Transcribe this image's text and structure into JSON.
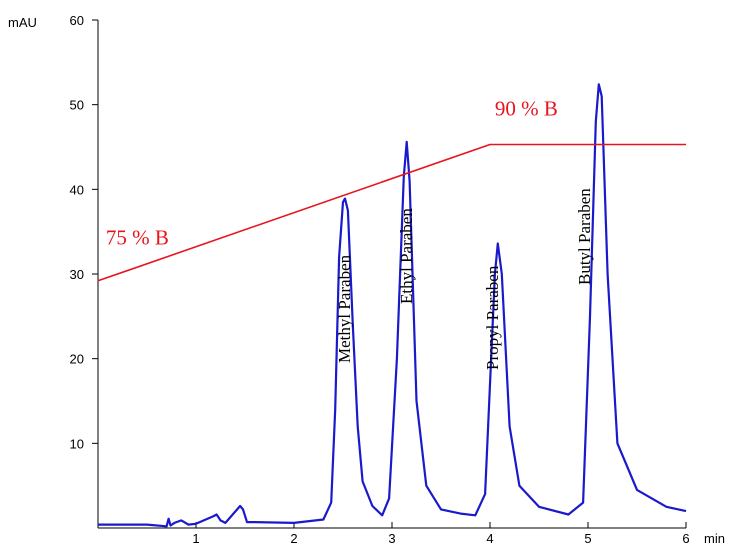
{
  "chart_data": {
    "type": "line",
    "title": "",
    "xlabel": "",
    "ylabel": "",
    "x_unit": "min",
    "y_unit": "mAU",
    "xlim": [
      0,
      6
    ],
    "ylim": [
      0,
      60
    ],
    "x_ticks": [
      1,
      2,
      3,
      4,
      5,
      6
    ],
    "y_ticks": [
      10,
      20,
      30,
      40,
      50,
      60
    ],
    "grid": false,
    "legend": "none",
    "colors": {
      "chromatogram": "#1a1acc",
      "gradient": "#e8141c",
      "text": "#000000"
    },
    "series": [
      {
        "color": "#1a1acc",
        "baseline": 0.4,
        "x": [
          0.0,
          0.5,
          0.7,
          0.72,
          0.74,
          0.78,
          0.85,
          0.88,
          0.92,
          1.0,
          1.18,
          1.21,
          1.25,
          1.3,
          1.45,
          1.48,
          1.52,
          1.6,
          2.0,
          2.3,
          2.38,
          2.42,
          2.46,
          2.5,
          2.52,
          2.55,
          2.6,
          2.65,
          2.7,
          2.8,
          2.9,
          2.97,
          3.05,
          3.12,
          3.15,
          3.18,
          3.25,
          3.35,
          3.5,
          3.7,
          3.85,
          3.95,
          4.0,
          4.05,
          4.08,
          4.12,
          4.2,
          4.3,
          4.5,
          4.8,
          4.95,
          5.02,
          5.08,
          5.11,
          5.14,
          5.2,
          5.3,
          5.5,
          5.8,
          6.0
        ],
        "y": [
          0.4,
          0.4,
          0.2,
          1.1,
          0.3,
          0.6,
          0.9,
          0.7,
          0.4,
          0.5,
          1.4,
          1.6,
          0.9,
          0.6,
          2.6,
          2.2,
          0.7,
          0.7,
          0.6,
          1.0,
          3.0,
          14.0,
          32.0,
          38.5,
          38.9,
          37.5,
          24.0,
          12.0,
          5.5,
          2.6,
          1.5,
          3.5,
          20.0,
          41.5,
          45.6,
          41.0,
          15.0,
          5.0,
          2.2,
          1.7,
          1.5,
          4.0,
          17.0,
          30.0,
          33.6,
          30.0,
          12.0,
          5.0,
          2.5,
          1.6,
          3.0,
          25.0,
          48.0,
          52.4,
          51.0,
          30.0,
          10.0,
          4.5,
          2.5,
          2.0
        ]
      },
      {
        "color": "#e8141c",
        "x": [
          0.0,
          4.0,
          6.0
        ],
        "y": [
          29.2,
          45.3,
          45.3
        ]
      }
    ],
    "peaks": [
      {
        "label": "Methyl Paraben",
        "retention_min": 2.52,
        "height": 38.9
      },
      {
        "label": "Ethyl Paraben",
        "retention_min": 3.15,
        "height": 45.6
      },
      {
        "label": "Propyl Paraben",
        "retention_min": 4.08,
        "height": 33.6
      },
      {
        "label": "Butyl Paraben",
        "retention_min": 5.11,
        "height": 52.4
      }
    ],
    "annotations": [
      {
        "text": "75 % B",
        "x": 0.08,
        "y": 33.5
      },
      {
        "text": "90 % B",
        "x": 4.05,
        "y": 48.7
      }
    ]
  }
}
